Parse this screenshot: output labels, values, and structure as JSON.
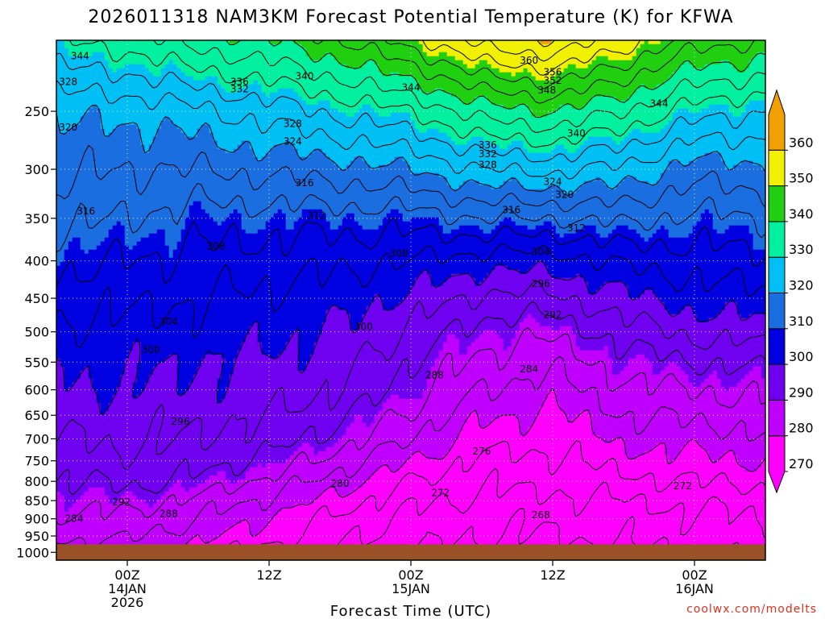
{
  "chart_data": {
    "type": "heatmap",
    "title": "2026011318 NAM3KM Forecast Potential Temperature (K) for KFWA",
    "xlabel": "Forecast Time (UTC)",
    "ylabel": "",
    "x_ticks": [
      {
        "value": 6,
        "lines": [
          "00Z",
          "14JAN",
          "2026"
        ]
      },
      {
        "value": 18,
        "lines": [
          "12Z"
        ]
      },
      {
        "value": 30,
        "lines": [
          "00Z",
          "15JAN"
        ]
      },
      {
        "value": 42,
        "lines": [
          "12Z"
        ]
      },
      {
        "value": 54,
        "lines": [
          "00Z",
          "16JAN"
        ]
      }
    ],
    "xlim": [
      0,
      60
    ],
    "y_ticks": [
      250,
      300,
      350,
      400,
      450,
      500,
      550,
      600,
      650,
      700,
      750,
      800,
      850,
      900,
      950,
      1000
    ],
    "ylim": [
      200,
      1025
    ],
    "y_scale": "log",
    "y_inverted": true,
    "surface_pressure_hpa": 975,
    "colorbar": {
      "levels": [
        270,
        280,
        290,
        300,
        310,
        320,
        330,
        340,
        350,
        360
      ],
      "colors": [
        "#ff00ff",
        "#c000ff",
        "#7000f0",
        "#0000e0",
        "#1a6ee0",
        "#00bff5",
        "#00f0a0",
        "#20d010",
        "#f0f000",
        "#f0a000"
      ],
      "labels": [
        "270",
        "280",
        "290",
        "300",
        "310",
        "320",
        "330",
        "340",
        "350",
        "360"
      ]
    },
    "profiles": [
      {
        "time": 0,
        "theta": {
          "975": 283,
          "950": 285,
          "900": 287,
          "850": 289,
          "800": 292,
          "750": 294,
          "700": 296,
          "650": 298,
          "600": 299,
          "550": 301,
          "500": 303,
          "450": 306,
          "400": 309,
          "350": 313,
          "300": 317,
          "250": 321,
          "200": 332
        }
      },
      {
        "time": 6,
        "theta": {
          "975": 283,
          "950": 285,
          "900": 287,
          "850": 290,
          "800": 293,
          "750": 295,
          "700": 297,
          "650": 298,
          "600": 300,
          "550": 301,
          "500": 303,
          "450": 305,
          "400": 308,
          "350": 312,
          "300": 316,
          "250": 321,
          "200": 334
        }
      },
      {
        "time": 12,
        "theta": {
          "975": 279,
          "950": 281,
          "900": 284,
          "850": 287,
          "800": 291,
          "750": 294,
          "700": 296,
          "650": 297,
          "600": 299,
          "550": 300,
          "500": 302,
          "450": 304,
          "400": 307,
          "350": 310,
          "300": 316,
          "250": 323,
          "200": 338
        }
      },
      {
        "time": 18,
        "theta": {
          "975": 276,
          "950": 278,
          "900": 280,
          "850": 283,
          "800": 287,
          "750": 291,
          "700": 294,
          "650": 296,
          "600": 298,
          "550": 299,
          "500": 301,
          "450": 303,
          "400": 306,
          "350": 310,
          "300": 317,
          "250": 326,
          "200": 340
        }
      },
      {
        "time": 24,
        "theta": {
          "975": 272,
          "950": 273,
          "900": 275,
          "850": 278,
          "800": 282,
          "750": 286,
          "700": 290,
          "650": 293,
          "600": 296,
          "550": 298,
          "500": 300,
          "450": 302,
          "400": 305,
          "350": 310,
          "300": 318,
          "250": 329,
          "200": 344
        }
      },
      {
        "time": 30,
        "theta": {
          "975": 269,
          "950": 270,
          "900": 271,
          "850": 273,
          "800": 276,
          "750": 280,
          "700": 284,
          "650": 287,
          "600": 290,
          "550": 292,
          "500": 295,
          "450": 299,
          "400": 304,
          "350": 310,
          "300": 320,
          "250": 332,
          "200": 350
        }
      },
      {
        "time": 36,
        "theta": {
          "975": 267,
          "950": 268,
          "900": 269,
          "850": 271,
          "800": 273,
          "750": 275,
          "700": 278,
          "650": 281,
          "600": 284,
          "550": 287,
          "500": 290,
          "450": 295,
          "400": 302,
          "350": 312,
          "300": 324,
          "250": 338,
          "200": 358
        }
      },
      {
        "time": 42,
        "theta": {
          "975": 267,
          "950": 268,
          "900": 269,
          "850": 271,
          "800": 273,
          "750": 275,
          "700": 277,
          "650": 279,
          "600": 282,
          "550": 285,
          "500": 289,
          "450": 295,
          "400": 302,
          "350": 312,
          "300": 325,
          "250": 340,
          "200": 360
        }
      },
      {
        "time": 48,
        "theta": {
          "975": 268,
          "950": 269,
          "900": 270,
          "850": 272,
          "800": 275,
          "750": 278,
          "700": 281,
          "650": 284,
          "600": 287,
          "550": 290,
          "500": 294,
          "450": 299,
          "400": 305,
          "350": 313,
          "300": 323,
          "250": 336,
          "200": 354
        }
      },
      {
        "time": 54,
        "theta": {
          "975": 269,
          "950": 270,
          "900": 271,
          "850": 273,
          "800": 276,
          "750": 279,
          "700": 282,
          "650": 285,
          "600": 288,
          "550": 292,
          "500": 297,
          "450": 302,
          "400": 306,
          "350": 311,
          "300": 318,
          "250": 330,
          "200": 346
        }
      },
      {
        "time": 60,
        "theta": {
          "975": 270,
          "950": 271,
          "900": 272,
          "850": 274,
          "800": 277,
          "750": 280,
          "700": 283,
          "650": 286,
          "600": 289,
          "550": 293,
          "500": 298,
          "450": 303,
          "400": 307,
          "350": 312,
          "300": 319,
          "250": 328,
          "200": 344
        }
      }
    ],
    "contour_labels": [
      {
        "t": 2.0,
        "p": 210,
        "text": "344"
      },
      {
        "t": 40.0,
        "p": 213,
        "text": "360"
      },
      {
        "t": 42.0,
        "p": 221,
        "text": "356"
      },
      {
        "t": 42.0,
        "p": 227,
        "text": "352"
      },
      {
        "t": 41.5,
        "p": 234,
        "text": "348"
      },
      {
        "t": 30.0,
        "p": 232,
        "text": "344"
      },
      {
        "t": 51.0,
        "p": 244,
        "text": "344"
      },
      {
        "t": 21.0,
        "p": 224,
        "text": "340"
      },
      {
        "t": 15.5,
        "p": 228,
        "text": "336"
      },
      {
        "t": 15.5,
        "p": 233,
        "text": "332"
      },
      {
        "t": 1.0,
        "p": 228,
        "text": "328"
      },
      {
        "t": 1.0,
        "p": 263,
        "text": "320"
      },
      {
        "t": 20.0,
        "p": 260,
        "text": "328"
      },
      {
        "t": 20.0,
        "p": 275,
        "text": "324"
      },
      {
        "t": 44.0,
        "p": 268,
        "text": "340"
      },
      {
        "t": 36.5,
        "p": 278,
        "text": "336"
      },
      {
        "t": 36.5,
        "p": 286,
        "text": "332"
      },
      {
        "t": 36.5,
        "p": 296,
        "text": "328"
      },
      {
        "t": 42.0,
        "p": 312,
        "text": "324"
      },
      {
        "t": 43.0,
        "p": 325,
        "text": "320"
      },
      {
        "t": 21.0,
        "p": 313,
        "text": "316"
      },
      {
        "t": 38.5,
        "p": 341,
        "text": "316"
      },
      {
        "t": 2.5,
        "p": 342,
        "text": "316"
      },
      {
        "t": 22.0,
        "p": 347,
        "text": "312"
      },
      {
        "t": 44.0,
        "p": 361,
        "text": "312"
      },
      {
        "t": 13.5,
        "p": 382,
        "text": "308"
      },
      {
        "t": 29.0,
        "p": 391,
        "text": "308"
      },
      {
        "t": 41.0,
        "p": 389,
        "text": "304"
      },
      {
        "t": 9.5,
        "p": 484,
        "text": "304"
      },
      {
        "t": 26.0,
        "p": 492,
        "text": "300"
      },
      {
        "t": 41.0,
        "p": 430,
        "text": "296"
      },
      {
        "t": 42.0,
        "p": 474,
        "text": "292"
      },
      {
        "t": 8.0,
        "p": 529,
        "text": "300"
      },
      {
        "t": 40.0,
        "p": 562,
        "text": "284"
      },
      {
        "t": 32.0,
        "p": 573,
        "text": "288"
      },
      {
        "t": 10.5,
        "p": 663,
        "text": "296"
      },
      {
        "t": 36.0,
        "p": 728,
        "text": "276"
      },
      {
        "t": 24.0,
        "p": 806,
        "text": "280"
      },
      {
        "t": 53.0,
        "p": 812,
        "text": "272"
      },
      {
        "t": 32.5,
        "p": 830,
        "text": "272"
      },
      {
        "t": 5.5,
        "p": 854,
        "text": "292"
      },
      {
        "t": 9.5,
        "p": 886,
        "text": "288"
      },
      {
        "t": 41.0,
        "p": 889,
        "text": "268"
      },
      {
        "t": 1.5,
        "p": 900,
        "text": "284"
      }
    ],
    "watermark": "coolwx.com/modelts"
  }
}
